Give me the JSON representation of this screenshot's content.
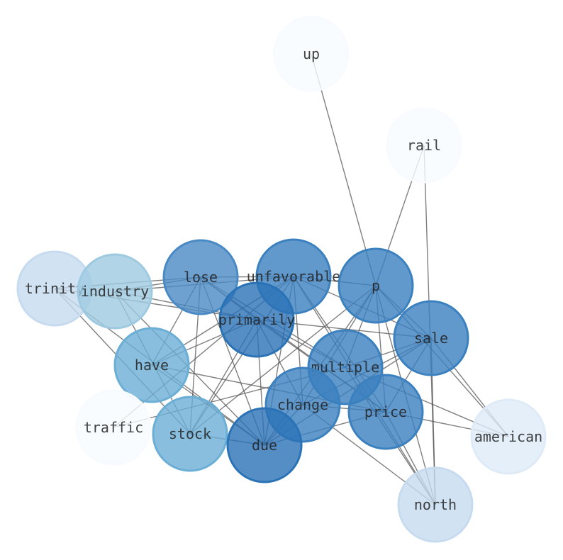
{
  "nodes": [
    {
      "id": "up",
      "color": "#f7fbff"
    },
    {
      "id": "rail",
      "color": "#f7fbff"
    },
    {
      "id": "trinity",
      "color": "#c6dbef"
    },
    {
      "id": "industry",
      "color": "#9ecae1"
    },
    {
      "id": "lose",
      "color": "#4a8ac4"
    },
    {
      "id": "unfavorable",
      "color": "#3b80bf"
    },
    {
      "id": "p",
      "color": "#3b80bf"
    },
    {
      "id": "primarily",
      "color": "#2a72b6"
    },
    {
      "id": "sale",
      "color": "#3b80bf"
    },
    {
      "id": "have",
      "color": "#6baed6"
    },
    {
      "id": "multiple",
      "color": "#3b80bf"
    },
    {
      "id": "change",
      "color": "#3b80bf"
    },
    {
      "id": "price",
      "color": "#3b80bf"
    },
    {
      "id": "traffic",
      "color": "#f7fbff"
    },
    {
      "id": "stock",
      "color": "#6baed6"
    },
    {
      "id": "due",
      "color": "#2a72b6"
    },
    {
      "id": "american",
      "color": "#deebf7"
    },
    {
      "id": "north",
      "color": "#c6dbef"
    }
  ],
  "edges": [
    [
      "up",
      "p"
    ],
    [
      "rail",
      "p"
    ],
    [
      "rail",
      "north"
    ],
    [
      "trinity",
      "lose"
    ],
    [
      "trinity",
      "stock"
    ],
    [
      "trinity",
      "due"
    ],
    [
      "trinity",
      "primarily"
    ],
    [
      "industry",
      "lose"
    ],
    [
      "industry",
      "stock"
    ],
    [
      "industry",
      "due"
    ],
    [
      "industry",
      "primarily"
    ],
    [
      "industry",
      "unfavorable"
    ],
    [
      "lose",
      "unfavorable"
    ],
    [
      "lose",
      "have"
    ],
    [
      "lose",
      "stock"
    ],
    [
      "lose",
      "due"
    ],
    [
      "lose",
      "primarily"
    ],
    [
      "lose",
      "multiple"
    ],
    [
      "lose",
      "price"
    ],
    [
      "have",
      "unfavorable"
    ],
    [
      "have",
      "primarily"
    ],
    [
      "have",
      "due"
    ],
    [
      "have",
      "price"
    ],
    [
      "traffic",
      "unfavorable"
    ],
    [
      "traffic",
      "multiple"
    ],
    [
      "stock",
      "due"
    ],
    [
      "stock",
      "unfavorable"
    ],
    [
      "stock",
      "primarily"
    ],
    [
      "stock",
      "p"
    ],
    [
      "primarily",
      "sale"
    ],
    [
      "primarily",
      "change"
    ],
    [
      "primarily",
      "due"
    ],
    [
      "primarily",
      "multiple"
    ],
    [
      "primarily",
      "price"
    ],
    [
      "unfavorable",
      "p"
    ],
    [
      "unfavorable",
      "sale"
    ],
    [
      "unfavorable",
      "change"
    ],
    [
      "unfavorable",
      "due"
    ],
    [
      "unfavorable",
      "price"
    ],
    [
      "unfavorable",
      "north"
    ],
    [
      "p",
      "sale"
    ],
    [
      "p",
      "change"
    ],
    [
      "p",
      "multiple"
    ],
    [
      "p",
      "price"
    ],
    [
      "p",
      "north"
    ],
    [
      "p",
      "due"
    ],
    [
      "p",
      "american"
    ],
    [
      "sale",
      "due"
    ],
    [
      "sale",
      "change"
    ],
    [
      "sale",
      "price"
    ],
    [
      "sale",
      "american"
    ],
    [
      "sale",
      "north"
    ],
    [
      "sale",
      "multiple"
    ],
    [
      "multiple",
      "american"
    ],
    [
      "multiple",
      "north"
    ],
    [
      "change",
      "north"
    ],
    [
      "change",
      "price"
    ],
    [
      "change",
      "due"
    ],
    [
      "price",
      "american"
    ],
    [
      "price",
      "due"
    ],
    [
      "price",
      "north"
    ]
  ]
}
